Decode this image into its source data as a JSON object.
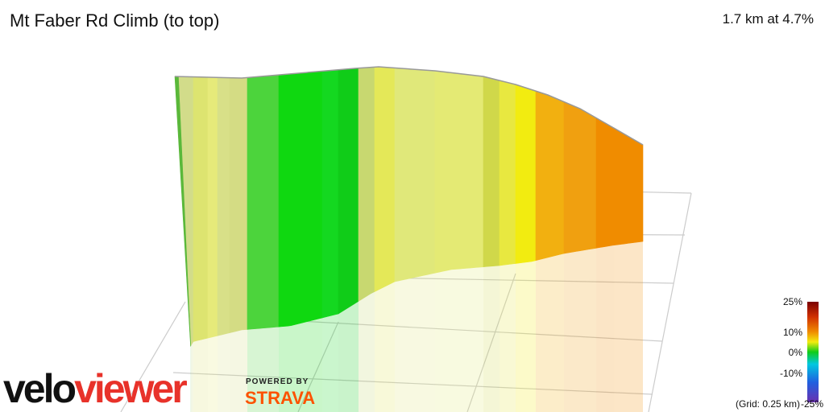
{
  "header": {
    "title": "Mt Faber Rd Climb (to top)",
    "summary": "1.7 km at 4.7%"
  },
  "legend": {
    "labels": [
      "25%",
      "10%",
      "0%",
      "-10%",
      "-25%"
    ],
    "grid_note": "(Grid: 0.25 km)"
  },
  "branding": {
    "logo_part1": "velo",
    "logo_part2": "viewer",
    "powered_by": "POWERED BY",
    "partner": "STRAVA"
  }
}
